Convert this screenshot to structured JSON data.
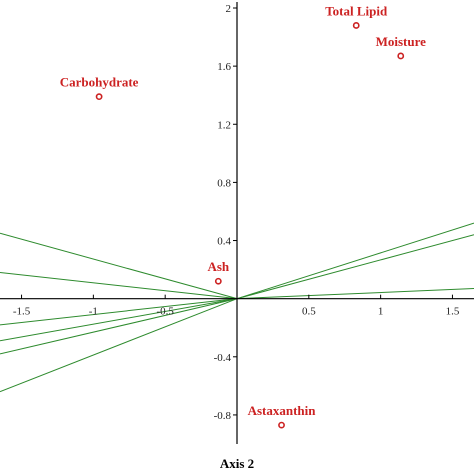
{
  "chart_data": {
    "type": "scatter",
    "title": "",
    "xlabel": "Axis 2",
    "ylabel": "",
    "xlim": [
      -1.65,
      1.65
    ],
    "ylim": [
      -1.0,
      2.0
    ],
    "x_ticks": [
      {
        "value": -1.5,
        "label": "-1.5"
      },
      {
        "value": -1.0,
        "label": "-1"
      },
      {
        "value": -0.5,
        "label": "-0.5"
      },
      {
        "value": 0.5,
        "label": "0.5"
      },
      {
        "value": 1.0,
        "label": "1"
      },
      {
        "value": 1.5,
        "label": "1.5"
      }
    ],
    "y_ticks": [
      {
        "value": 2.0,
        "label": "2"
      },
      {
        "value": 1.6,
        "label": "1.6"
      },
      {
        "value": 1.2,
        "label": "1.2"
      },
      {
        "value": 0.8,
        "label": "0.8"
      },
      {
        "value": 0.4,
        "label": "0.4"
      },
      {
        "value": -0.4,
        "label": "-0.4"
      },
      {
        "value": -0.8,
        "label": "-0.8"
      }
    ],
    "points": [
      {
        "name": "Total Lipid",
        "x": 0.83,
        "y": 1.88
      },
      {
        "name": "Moisture",
        "x": 1.14,
        "y": 1.67
      },
      {
        "name": "Carbohydrate",
        "x": -0.96,
        "y": 1.39
      },
      {
        "name": "Ash",
        "x": -0.13,
        "y": 0.12
      },
      {
        "name": "Astaxanthin",
        "x": 0.31,
        "y": -0.87
      }
    ],
    "vectors": [
      {
        "x": 1.65,
        "y": 0.52
      },
      {
        "x": 1.65,
        "y": 0.44
      },
      {
        "x": 1.65,
        "y": 0.07
      },
      {
        "x": -1.65,
        "y": 0.45
      },
      {
        "x": -1.65,
        "y": 0.18
      },
      {
        "x": -1.65,
        "y": -0.18
      },
      {
        "x": -1.65,
        "y": -0.29
      },
      {
        "x": -1.65,
        "y": -0.38
      },
      {
        "x": -1.65,
        "y": -0.64
      }
    ],
    "grid": false,
    "legend": "none",
    "colors": {
      "label": "#cc2222",
      "marker": "#cc2222",
      "vector": "#2e8b2e",
      "axis": "#000000"
    }
  }
}
